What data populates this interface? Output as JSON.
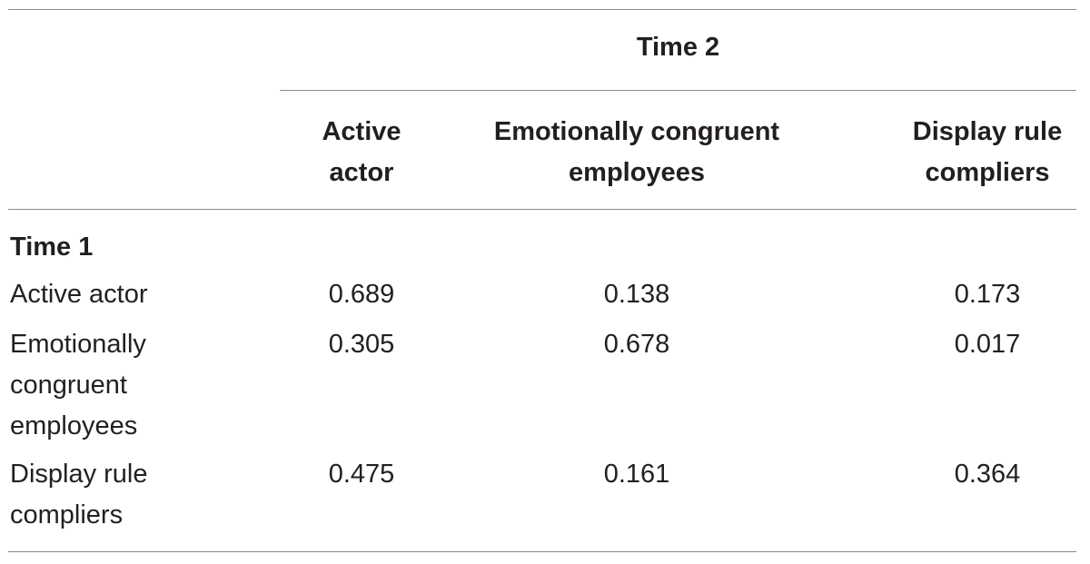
{
  "table": {
    "column_group_header": "Time 2",
    "columns": [
      {
        "label_line1": "Active",
        "label_line2": "actor"
      },
      {
        "label_line1": "Emotionally congruent",
        "label_line2": "employees"
      },
      {
        "label_line1": "Display rule",
        "label_line2": "compliers"
      }
    ],
    "row_group_header": "Time 1",
    "rows": [
      {
        "label_lines": [
          "Active actor"
        ],
        "values": [
          "0.689",
          "0.138",
          "0.173"
        ]
      },
      {
        "label_lines": [
          "Emotionally",
          "congruent",
          "employees"
        ],
        "values": [
          "0.305",
          "0.678",
          "0.017"
        ]
      },
      {
        "label_lines": [
          "Display rule",
          "compliers"
        ],
        "values": [
          "0.475",
          "0.161",
          "0.364"
        ]
      }
    ]
  }
}
